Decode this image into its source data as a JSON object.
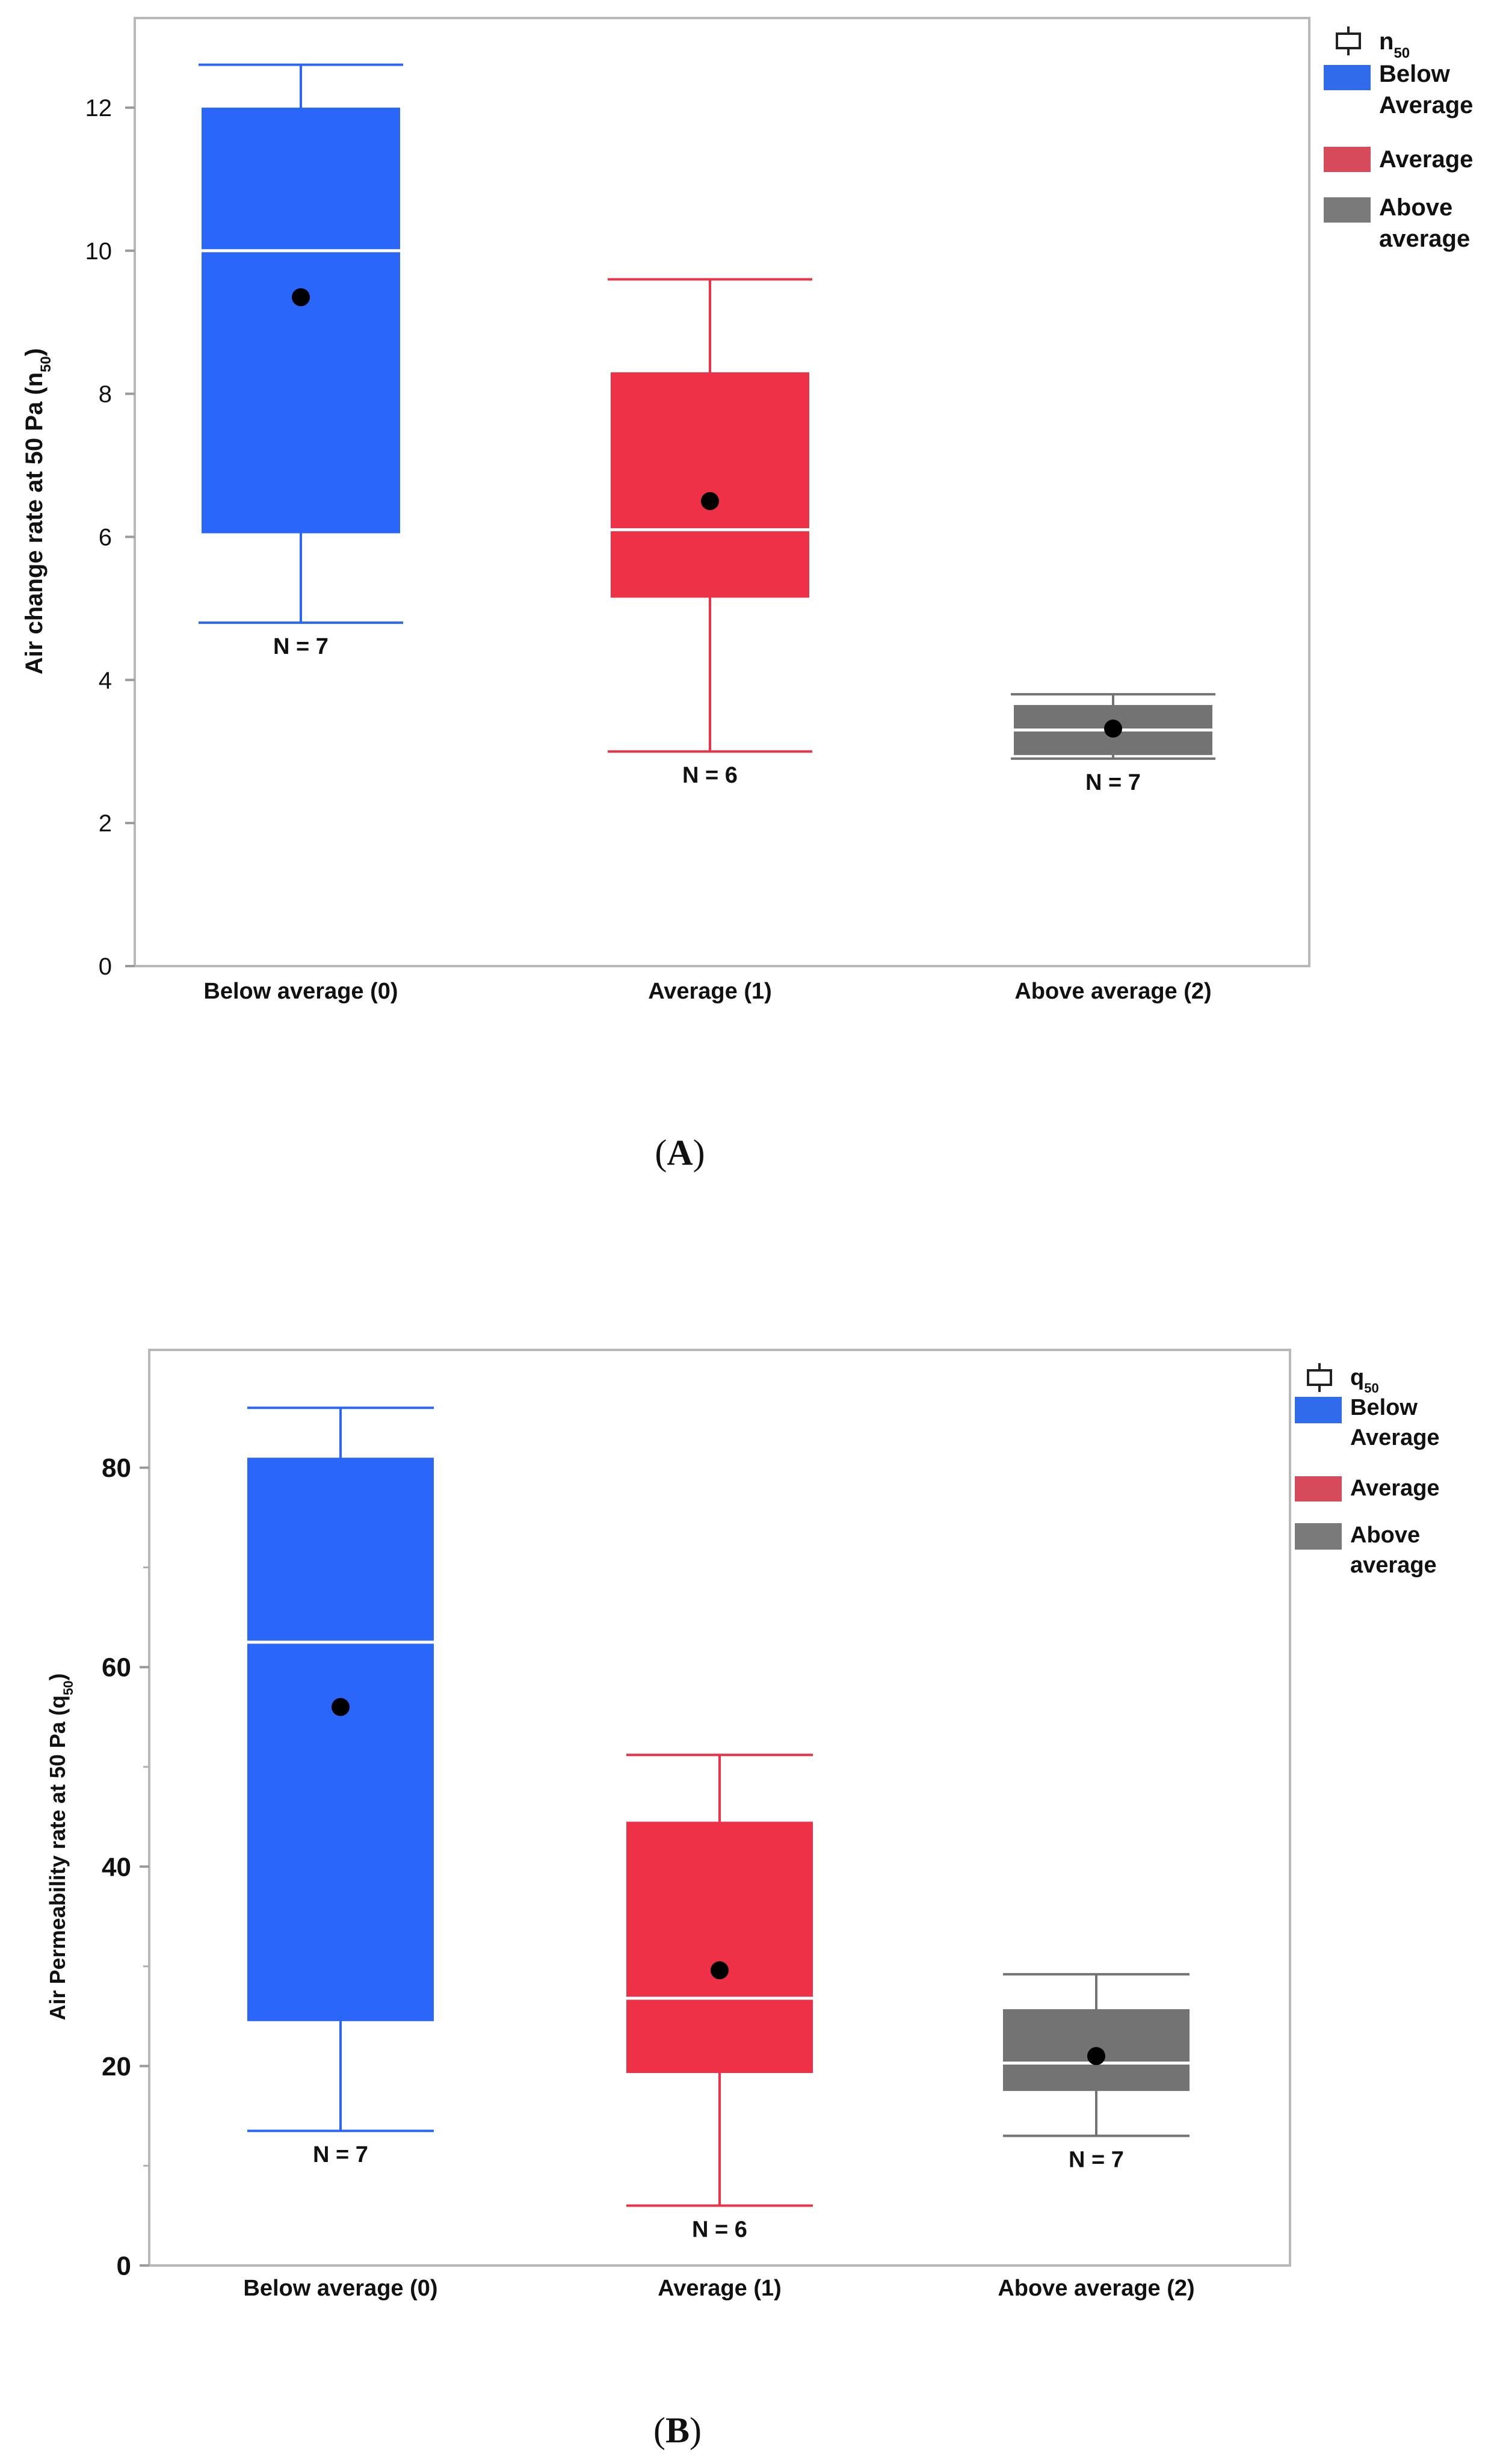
{
  "chart_data": [
    {
      "type": "boxplot",
      "panel_label": "(A)",
      "panel_letter": "A",
      "xlabel": "",
      "ylabel": "Air change rate at 50 Pa (n50)",
      "ylabel_main": "Air change rate at 50 Pa (n",
      "ylabel_sub": "50",
      "ylabel_end": ")",
      "ylim": [
        0,
        13
      ],
      "yticks": [
        0,
        2,
        4,
        6,
        8,
        10,
        12
      ],
      "grid": false,
      "legend_position": "right",
      "legend_title_main": "n",
      "legend_title_sub": "50",
      "legend": [
        {
          "lines": [
            "Below",
            "Average"
          ],
          "color": "#2f6bea"
        },
        {
          "lines": [
            "Average"
          ],
          "color": "#d64a5c"
        },
        {
          "lines": [
            "Above",
            "average"
          ],
          "color": "#7a7a7a"
        }
      ],
      "categories": [
        "Below average (0)",
        "Average (1)",
        "Above average (2)"
      ],
      "boxes": [
        {
          "name": "Below average (0)",
          "color": "#2b66fb",
          "whisker_low": 4.8,
          "q1": 6.05,
          "median": 10.0,
          "q3": 12.0,
          "whisker_high": 12.6,
          "mean": 9.35,
          "n_label": "N = 7"
        },
        {
          "name": "Average (1)",
          "color": "#ee3147",
          "whisker_low": 3.0,
          "q1": 5.15,
          "median": 6.1,
          "q3": 8.3,
          "whisker_high": 9.6,
          "mean": 6.5,
          "n_label": "N = 6"
        },
        {
          "name": "Above average (2)",
          "color": "#737373",
          "whisker_low": 2.9,
          "q1": 2.95,
          "median": 3.3,
          "q3": 3.65,
          "whisker_high": 3.8,
          "mean": 3.32,
          "n_label": "N = 7"
        }
      ]
    },
    {
      "type": "boxplot",
      "panel_label": "(B)",
      "panel_letter": "B",
      "xlabel": "",
      "ylabel": "Air Permeability rate at 50 Pa (q50)",
      "ylabel_main": "Air Permeability rate at 50 Pa (q",
      "ylabel_sub": "50",
      "ylabel_end": ")",
      "ylim": [
        0,
        90
      ],
      "yticks": [
        0,
        20,
        40,
        60,
        80
      ],
      "grid": false,
      "legend_position": "right",
      "legend_title_main": "q",
      "legend_title_sub": "50",
      "legend": [
        {
          "lines": [
            "Below",
            "Average"
          ],
          "color": "#2f6bea"
        },
        {
          "lines": [
            "Average"
          ],
          "color": "#d64a5c"
        },
        {
          "lines": [
            "Above",
            "average"
          ],
          "color": "#7a7a7a"
        }
      ],
      "categories": [
        "Below average (0)",
        "Average (1)",
        "Above average (2)"
      ],
      "boxes": [
        {
          "name": "Below average (0)",
          "color": "#2b66fb",
          "whisker_low": 13.5,
          "q1": 24.5,
          "median": 62.5,
          "q3": 81.0,
          "whisker_high": 86.0,
          "mean": 56.0,
          "n_label": "N = 7"
        },
        {
          "name": "Average (1)",
          "color": "#ee3147",
          "whisker_low": 6.0,
          "q1": 19.3,
          "median": 26.8,
          "q3": 44.5,
          "whisker_high": 51.2,
          "mean": 29.6,
          "n_label": "N = 6"
        },
        {
          "name": "Above average (2)",
          "color": "#737373",
          "whisker_low": 13.0,
          "q1": 17.5,
          "median": 20.3,
          "q3": 25.7,
          "whisker_high": 29.2,
          "mean": 21.0,
          "n_label": "N = 7"
        }
      ]
    }
  ]
}
